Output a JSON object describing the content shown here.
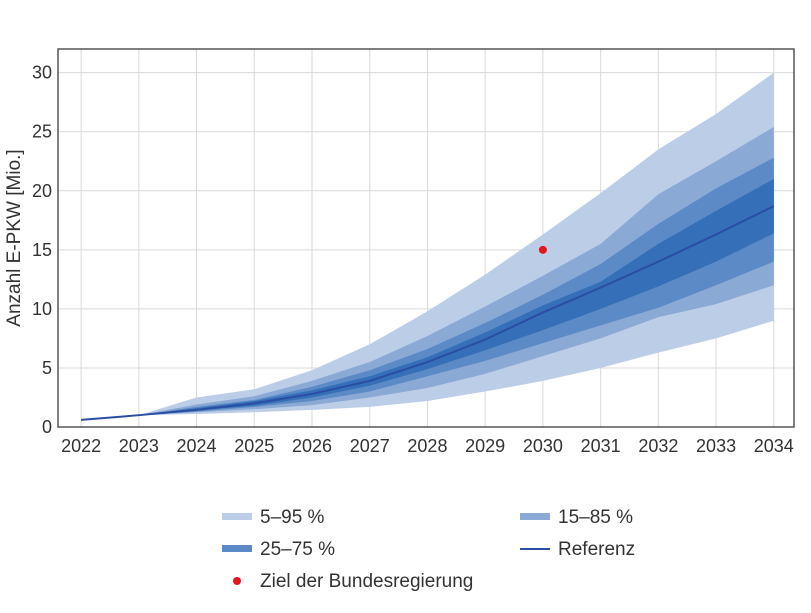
{
  "chart_data": {
    "type": "area",
    "title": "",
    "xlabel": "",
    "ylabel": "Anzahl E-PKW [Mio.]",
    "x": [
      2022,
      2023,
      2024,
      2025,
      2026,
      2027,
      2028,
      2029,
      2030,
      2031,
      2032,
      2033,
      2034
    ],
    "xlim": [
      2021.6,
      2034.35
    ],
    "ylim": [
      0,
      32
    ],
    "y_ticks": [
      0,
      5,
      10,
      15,
      20,
      25,
      30
    ],
    "grid": true,
    "bands": [
      {
        "name": "5–95 %",
        "color": "#bccde8",
        "lower": [
          0.6,
          1.0,
          1.1,
          1.25,
          1.45,
          1.7,
          2.2,
          3.0,
          3.9,
          5.0,
          6.3,
          7.5,
          9.0
        ],
        "upper": [
          0.6,
          1.0,
          2.5,
          3.2,
          4.8,
          7.0,
          9.8,
          12.9,
          16.3,
          19.8,
          23.5,
          26.5,
          30.0
        ]
      },
      {
        "name": "15–85 %",
        "color": "#8ba9d5",
        "lower": [
          0.6,
          1.0,
          1.25,
          1.5,
          1.85,
          2.5,
          3.3,
          4.5,
          6.0,
          7.5,
          9.3,
          10.4,
          12.0
        ],
        "upper": [
          0.6,
          1.0,
          1.9,
          2.6,
          3.9,
          5.5,
          7.7,
          10.2,
          12.8,
          15.5,
          19.7,
          22.5,
          25.4
        ]
      },
      {
        "name": "25–75 %",
        "color": "#5b8ac6",
        "lower": [
          0.6,
          1.0,
          1.3,
          1.7,
          2.2,
          3.0,
          4.3,
          5.6,
          7.1,
          8.6,
          10.1,
          12.0,
          14.0
        ],
        "upper": [
          0.6,
          1.0,
          1.7,
          2.3,
          3.4,
          4.8,
          6.6,
          8.8,
          11.2,
          13.8,
          17.2,
          20.2,
          22.8
        ]
      },
      {
        "name": "",
        "color": "#346fb8",
        "lower": [
          0.6,
          1.0,
          1.4,
          1.8,
          2.5,
          3.5,
          4.9,
          6.5,
          8.2,
          10.0,
          11.9,
          14.0,
          16.4
        ],
        "upper": [
          0.6,
          1.0,
          1.6,
          2.2,
          3.1,
          4.3,
          5.9,
          8.0,
          10.3,
          12.3,
          15.5,
          18.3,
          21.0
        ]
      }
    ],
    "reference": {
      "name": "Referenz",
      "color": "#2a4ea3",
      "values": [
        0.6,
        1.0,
        1.45,
        2.0,
        2.8,
        3.9,
        5.5,
        7.4,
        9.7,
        11.8,
        14.0,
        16.3,
        18.7
      ]
    },
    "target": {
      "name": "Ziel der Bundesregierung",
      "color": "#e8141c",
      "x": 2030,
      "y": 15
    },
    "legend": {
      "position": "bottom",
      "items": [
        {
          "label": "5–95 %",
          "kind": "band",
          "color": "#bccde8"
        },
        {
          "label": "15–85 %",
          "kind": "band",
          "color": "#8ba9d5"
        },
        {
          "label": "25–75 %",
          "kind": "band",
          "color": "#5b8ac6"
        },
        {
          "label": "Referenz",
          "kind": "line",
          "color": "#2a4ea3"
        },
        {
          "label": "Ziel der Bundesregierung",
          "kind": "dot",
          "color": "#e8141c"
        }
      ]
    }
  }
}
